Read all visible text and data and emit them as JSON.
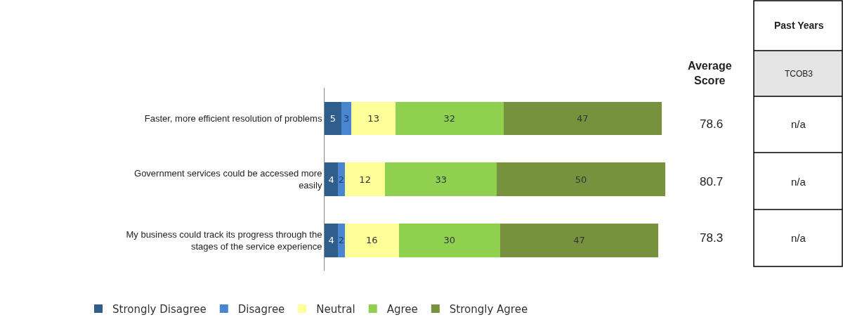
{
  "chart_data": {
    "type": "bar",
    "orientation": "horizontal",
    "stacked": true,
    "data_labels": true,
    "legend": "bottom",
    "tick_labels": "y",
    "xlim": [
      0,
      101
    ],
    "categories": [
      "Faster, more efficient resolution of problems",
      "Government services could be accessed more easily",
      "My business could track its progress through the stages of the service experience"
    ],
    "series": [
      {
        "name": "Strongly Disagree",
        "color": "#2f5d8c",
        "values": [
          5,
          4,
          4
        ]
      },
      {
        "name": "Disagree",
        "color": "#4a86d0",
        "values": [
          3,
          2,
          2
        ]
      },
      {
        "name": "Neutral",
        "color": "#ffff99",
        "values": [
          13,
          12,
          16
        ]
      },
      {
        "name": "Agree",
        "color": "#8fd14f",
        "values": [
          32,
          33,
          30
        ]
      },
      {
        "name": "Strongly Agree",
        "color": "#76923c",
        "values": [
          47,
          50,
          47
        ]
      }
    ],
    "annotations": [
      "Average Score",
      "78.6",
      "80.7",
      "78.3",
      "Past Years",
      "TCOB3",
      "n/a",
      "n/a",
      "n/a"
    ]
  }
}
